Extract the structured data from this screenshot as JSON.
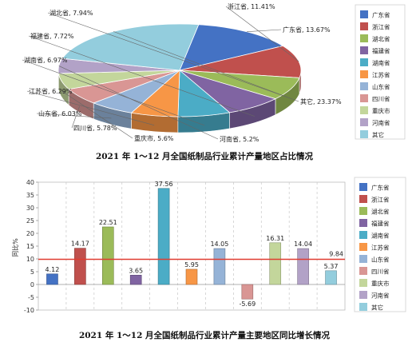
{
  "chart_data": [
    {
      "type": "pie",
      "title": "2021 年 1～12 月全国纸制品行业累计产量地区占比情况",
      "slices": [
        {
          "name": "广东省",
          "value": 13.67,
          "label": "广东省, 13.67%",
          "color": "#4472c4"
        },
        {
          "name": "浙江省",
          "value": 11.41,
          "label": "浙江省, 11.41%",
          "color": "#c0504d"
        },
        {
          "name": "湖北省",
          "value": 7.94,
          "label": "湖北省, 7.94%",
          "color": "#9bbb59"
        },
        {
          "name": "福建省",
          "value": 7.72,
          "label": "福建省, 7.72%",
          "color": "#8064a2"
        },
        {
          "name": "湖南省",
          "value": 6.97,
          "label": "湖南省, 6.97%",
          "color": "#4bacc6"
        },
        {
          "name": "江苏省",
          "value": 6.29,
          "label": "江苏省, 6.29%",
          "color": "#f79646"
        },
        {
          "name": "山东省",
          "value": 6.03,
          "label": "山东省, 6.03%",
          "color": "#95b3d7"
        },
        {
          "name": "四川省",
          "value": 5.78,
          "label": "四川省, 5.78%",
          "color": "#d99694"
        },
        {
          "name": "重庆市",
          "value": 5.6,
          "label": "重庆市, 5.6%",
          "color": "#c3d69b"
        },
        {
          "name": "河南省",
          "value": 5.2,
          "label": "河南省, 5.2%",
          "color": "#b2a2c7"
        },
        {
          "name": "其它",
          "value": 23.37,
          "label": "其它, 23.37%",
          "color": "#93cddd"
        }
      ],
      "legend": [
        "广东省",
        "浙江省",
        "湖北省",
        "福建省",
        "湖南省",
        "江苏省",
        "山东省",
        "四川省",
        "重庆市",
        "河南省",
        "其它"
      ],
      "legend_placement": "right"
    },
    {
      "type": "bar",
      "title": "2021 年 1～12 月全国纸制品行业累计产量主要地区同比增长情况",
      "ylabel": "同比%",
      "ylim": [
        -10,
        40
      ],
      "yticks": [
        "-10",
        "-5",
        "0",
        "5",
        "10",
        "15",
        "20",
        "25",
        "30",
        "35",
        "40"
      ],
      "grid": "vertical dashed",
      "categories": [
        "广东省",
        "浙江省",
        "湖北省",
        "福建省",
        "湖南省",
        "江苏省",
        "山东省",
        "四川省",
        "重庆市",
        "河南省",
        "其它"
      ],
      "values": [
        4.12,
        14.17,
        22.51,
        3.65,
        37.56,
        5.95,
        14.05,
        -5.69,
        16.31,
        14.04,
        5.37
      ],
      "value_labels": [
        "4.12",
        "14.17",
        "22.51",
        "3.65",
        "37.56",
        "5.95",
        "14.05",
        "-5.69",
        "16.31",
        "14.04",
        "5.37"
      ],
      "colors": [
        "#4472c4",
        "#c0504d",
        "#9bbb59",
        "#8064a2",
        "#4bacc6",
        "#f79646",
        "#95b3d7",
        "#d99694",
        "#c3d69b",
        "#b2a2c7",
        "#93cddd"
      ],
      "reference_line": {
        "value": 9.84,
        "label": "9.84",
        "color": "#e03c31"
      },
      "legend": [
        "广东省",
        "浙江省",
        "湖北省",
        "福建省",
        "湖南省",
        "江苏省",
        "山东省",
        "四川省",
        "重庆市",
        "河南省",
        "其它"
      ],
      "legend_placement": "right"
    }
  ]
}
